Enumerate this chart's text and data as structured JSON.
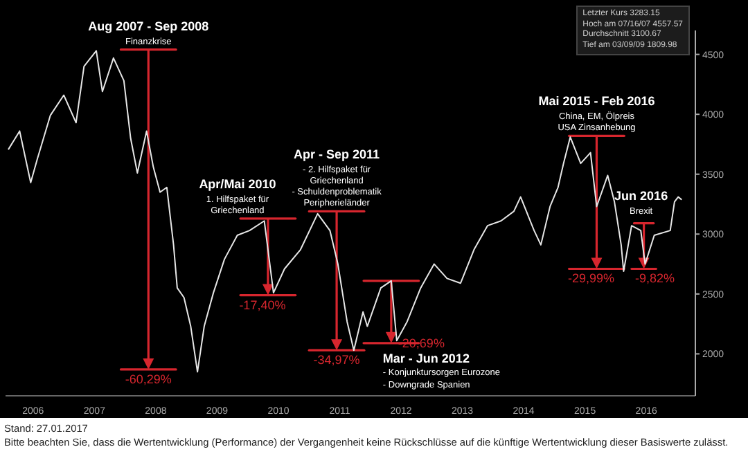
{
  "chart_data": {
    "type": "line",
    "series": [
      {
        "color": "#e6e6e6",
        "x": [
          2006.1,
          2006.28,
          2006.46,
          2006.57,
          2006.78,
          2007.0,
          2007.2,
          2007.33,
          2007.53,
          2007.63,
          2007.81,
          2007.98,
          2008.09,
          2008.2,
          2008.35,
          2008.46,
          2008.57,
          2008.68,
          2008.79,
          2008.85,
          2008.96,
          2009.07,
          2009.18,
          2009.29,
          2009.44,
          2009.62,
          2009.83,
          2010.03,
          2010.27,
          2010.42,
          2010.6,
          2010.86,
          2011.14,
          2011.34,
          2011.47,
          2011.62,
          2011.73,
          2011.88,
          2011.95,
          2012.17,
          2012.34,
          2012.43,
          2012.6,
          2012.82,
          2013.04,
          2013.25,
          2013.47,
          2013.69,
          2013.91,
          2014.13,
          2014.34,
          2014.45,
          2014.67,
          2014.78,
          2014.93,
          2015.06,
          2015.15,
          2015.26,
          2015.43,
          2015.59,
          2015.69,
          2015.87,
          2015.98,
          2016.09,
          2016.13,
          2016.26,
          2016.41,
          2016.48,
          2016.63,
          2016.89,
          2016.96,
          2017.02,
          2017.07
        ],
        "values": [
          3710,
          3860,
          3430,
          3630,
          3990,
          4160,
          3930,
          4400,
          4530,
          4190,
          4470,
          4280,
          3800,
          3510,
          3860,
          3560,
          3350,
          3390,
          2910,
          2550,
          2470,
          2230,
          1850,
          2230,
          2510,
          2790,
          2990,
          3030,
          3110,
          2510,
          2710,
          2870,
          3170,
          3030,
          2750,
          2270,
          2030,
          2350,
          2230,
          2550,
          2610,
          2110,
          2270,
          2550,
          2750,
          2630,
          2590,
          2870,
          3070,
          3110,
          3190,
          3310,
          3030,
          2910,
          3230,
          3390,
          3590,
          3810,
          3590,
          3680,
          3230,
          3490,
          3270,
          2910,
          2690,
          3070,
          3030,
          2750,
          2990,
          3030,
          3270,
          3310,
          3290
        ]
      },
      {
        "color": "#d7262e",
        "x": [
          2007.93,
          2008.83
        ],
        "values": [
          4540,
          4540
        ]
      },
      {
        "color": "#d7262e",
        "x": [
          2007.93,
          2008.83
        ],
        "values": [
          1870,
          1870
        ]
      },
      {
        "color": "#d7262e",
        "x": [
          2009.88,
          2010.78
        ],
        "values": [
          3130,
          3130
        ]
      },
      {
        "color": "#d7262e",
        "x": [
          2009.88,
          2010.78
        ],
        "values": [
          2490,
          2490
        ]
      },
      {
        "color": "#d7262e",
        "x": [
          2011.0,
          2011.9
        ],
        "values": [
          3190,
          3190
        ]
      },
      {
        "color": "#d7262e",
        "x": [
          2011.0,
          2011.9
        ],
        "values": [
          2030,
          2030
        ]
      },
      {
        "color": "#d7262e",
        "x": [
          2011.89,
          2012.79
        ],
        "values": [
          2610,
          2610
        ]
      },
      {
        "color": "#d7262e",
        "x": [
          2011.89,
          2012.79
        ],
        "values": [
          2090,
          2090
        ]
      },
      {
        "color": "#d7262e",
        "x": [
          2015.24,
          2016.14
        ],
        "values": [
          3820,
          3820
        ]
      },
      {
        "color": "#d7262e",
        "x": [
          2015.24,
          2016.14
        ],
        "values": [
          2710,
          2710
        ]
      },
      {
        "color": "#d7262e",
        "x": [
          2016.3,
          2016.62
        ],
        "values": [
          3090,
          3090
        ]
      },
      {
        "color": "#d7262e",
        "x": [
          2016.26,
          2016.66
        ],
        "values": [
          2710,
          2710
        ]
      }
    ],
    "xlim": [
      2006.05,
      2017.3
    ],
    "ylim": [
      1650,
      4700
    ],
    "yticks": [
      2000,
      2500,
      3000,
      3500,
      4000,
      4500
    ],
    "xticks": [
      {
        "value": 2006.5,
        "label": "2006"
      },
      {
        "value": 2007.5,
        "label": "2007"
      },
      {
        "value": 2008.5,
        "label": "2008"
      },
      {
        "value": 2009.5,
        "label": "2009"
      },
      {
        "value": 2010.5,
        "label": "2010"
      },
      {
        "value": 2011.5,
        "label": "2011"
      },
      {
        "value": 2012.5,
        "label": "2012"
      },
      {
        "value": 2013.5,
        "label": "2013"
      },
      {
        "value": 2014.5,
        "label": "2014"
      },
      {
        "value": 2015.5,
        "label": "2015"
      },
      {
        "value": 2016.5,
        "label": "2016"
      }
    ],
    "grid": false,
    "marker": "none",
    "line_style": "solid",
    "annotations": [
      "Letzter Kurs 3283.15",
      "Hoch am 07/16/07 4557.57",
      "Durchschnitt 3100.67",
      "Tief am 03/09/09 1809.98",
      "Stand: 27.01.2017",
      "Bitte beachten Sie, dass die Wertentwicklung (Performance) der Vergangenheit keine Rückschlüsse auf die künftige Wertentwicklung dieser Basiswerte zulässt.",
      "Aug 2007 - Sep 2008\nFinanzkrise",
      "-60,29%",
      "Apr/Mai 2010\n1. Hilfspaket für\nGriechenland",
      "-17,40%",
      "Apr - Sep 2011\n- 2. Hilfspaket für\nGriechenland\n- Schuldenproblematik\nPeripherieländer",
      "-34,97%",
      "Mar - Jun 2012\n- Konjunktursorgen Eurozone\n- Downgrade Spanien",
      "-20,69%",
      "Mai 2015 - Feb 2016\nChina, EM, Ölpreis\nUSA Zinsanhebung",
      "-29,99%",
      "Jun 2016\nBrexit",
      "-9,82%"
    ]
  }
}
